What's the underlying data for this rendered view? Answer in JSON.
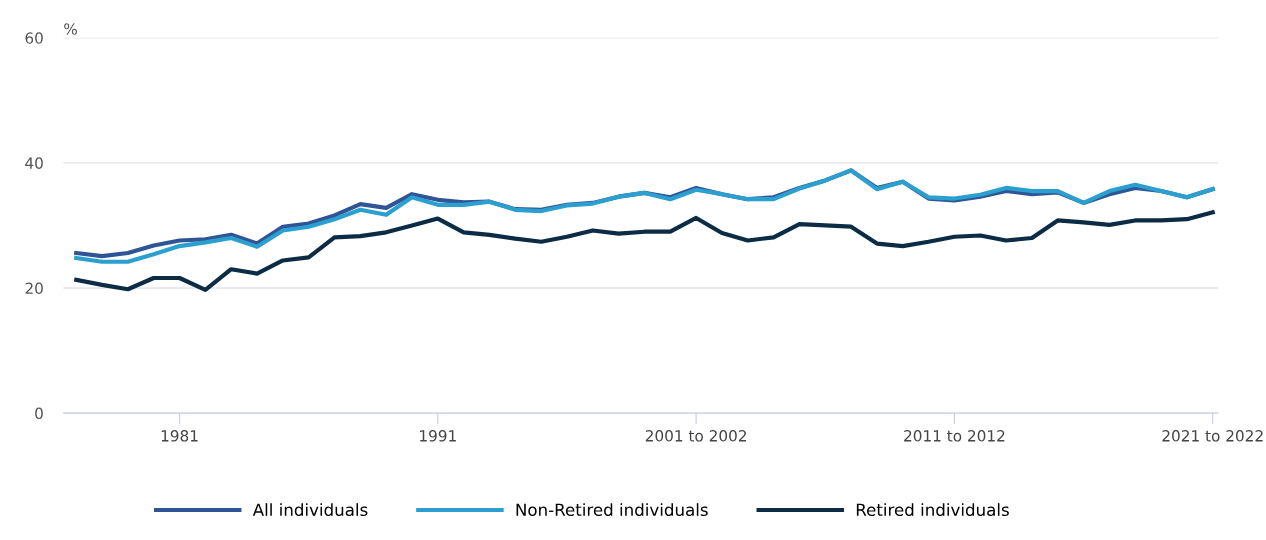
{
  "chart_data": {
    "type": "line",
    "ylabel": "%",
    "categories": [
      null,
      null,
      null,
      null,
      "1981",
      null,
      null,
      null,
      null,
      null,
      null,
      null,
      null,
      null,
      "1991",
      null,
      null,
      null,
      null,
      null,
      null,
      null,
      null,
      null,
      "2001 to 2002",
      null,
      null,
      null,
      null,
      null,
      null,
      null,
      null,
      null,
      "2011 to 2012",
      null,
      null,
      null,
      null,
      null,
      null,
      null,
      null,
      null,
      "2021 to 2022"
    ],
    "series": [
      {
        "name": "All individuals",
        "color": "#2f5596",
        "values": [
          25.6,
          25.1,
          25.6,
          26.8,
          27.6,
          27.8,
          28.5,
          27.1,
          29.8,
          30.3,
          31.6,
          33.4,
          32.8,
          35.0,
          34.1,
          33.7,
          33.8,
          32.6,
          32.5,
          33.3,
          33.6,
          34.6,
          35.2,
          34.5,
          36.0,
          35.0,
          34.2,
          34.5,
          36.0,
          37.2,
          38.8,
          36.0,
          37.0,
          34.3,
          34.0,
          34.6,
          35.5,
          35.0,
          35.3,
          33.6,
          35.0,
          36.0,
          35.5,
          34.5,
          35.8
        ]
      },
      {
        "name": "Non-Retired individuals",
        "color": "#2a9fd0",
        "values": [
          24.8,
          24.2,
          24.2,
          25.4,
          26.7,
          27.3,
          28.0,
          26.6,
          29.2,
          29.8,
          31.0,
          32.5,
          31.7,
          34.5,
          33.3,
          33.3,
          33.8,
          32.5,
          32.3,
          33.2,
          33.5,
          34.6,
          35.2,
          34.2,
          35.7,
          35.0,
          34.2,
          34.2,
          35.9,
          37.2,
          38.8,
          35.8,
          37.0,
          34.5,
          34.3,
          34.9,
          36.0,
          35.5,
          35.5,
          33.6,
          35.5,
          36.5,
          35.5,
          34.5,
          35.8
        ]
      },
      {
        "name": "Retired individuals",
        "color": "#0b2c44",
        "values": [
          21.3,
          20.5,
          19.8,
          21.6,
          21.6,
          19.7,
          23.0,
          22.3,
          24.4,
          24.9,
          28.1,
          28.3,
          28.9,
          30.0,
          31.1,
          28.9,
          28.5,
          27.9,
          27.4,
          28.2,
          29.2,
          28.7,
          29.0,
          29.0,
          31.2,
          28.8,
          27.6,
          28.1,
          30.2,
          30.0,
          29.8,
          27.1,
          26.7,
          27.4,
          28.2,
          28.4,
          27.6,
          28.0,
          30.8,
          30.5,
          30.1,
          30.8,
          30.8,
          31.0,
          32.1
        ]
      }
    ],
    "ylim": [
      0,
      60
    ],
    "yticks": [
      0,
      20,
      40,
      60
    ],
    "grid": "y",
    "legend": "bottom",
    "marker": "none",
    "line_style": "solid"
  }
}
